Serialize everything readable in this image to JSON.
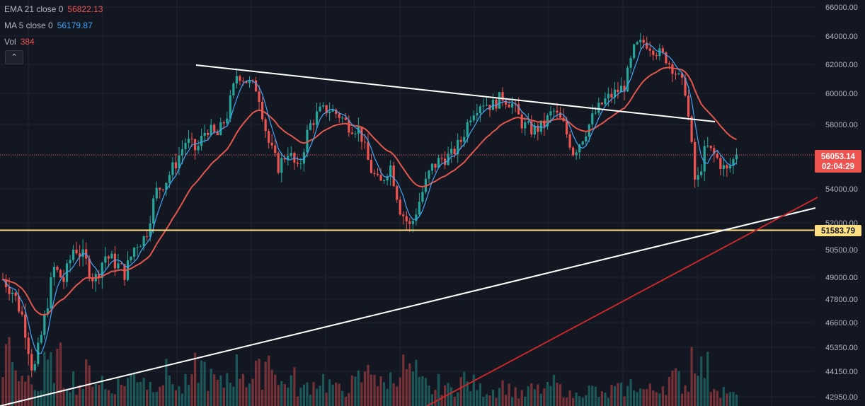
{
  "legend": {
    "ema": {
      "label": "EMA 21 close 0",
      "value": "56822.13",
      "color": "#ef5350"
    },
    "ma": {
      "label": "MA 5 close 0",
      "value": "56179.87",
      "color": "#2196f3"
    },
    "vol": {
      "label": "Vol",
      "value": "384",
      "color": "#ef5350"
    },
    "collapse_icon": "chevron-up-icon"
  },
  "price_axis": {
    "ticks": [
      "66000.00",
      "64000.00",
      "62000.00",
      "60000.00",
      "58000.00",
      "56000.00",
      "54000.00",
      "52000.00",
      "50500.00",
      "49000.00",
      "47800.00",
      "46600.00",
      "45350.00",
      "44150.00",
      "42950.00"
    ]
  },
  "badges": {
    "current_price": "56053.14",
    "countdown": "02:04:29",
    "support_level": "51583.79"
  },
  "colors": {
    "background": "#131722",
    "up": "#26a69a",
    "down": "#ef5350",
    "ema_line": "#e2574c",
    "ma_line": "#42a5f5",
    "support_line": "#ffe082",
    "trend_white": "#ffffff",
    "trend_red": "#c62828"
  },
  "chart_data": {
    "type": "candlestick",
    "y_axis_ticks": [
      66000,
      64000,
      62000,
      60000,
      58000,
      56000,
      54000,
      52000,
      50500,
      49000,
      47800,
      46600,
      45350,
      44150,
      42950
    ],
    "close_path": [
      [
        0,
        48900
      ],
      [
        1,
        48200
      ],
      [
        2,
        46800
      ],
      [
        3,
        44000
      ],
      [
        4,
        46500
      ],
      [
        5,
        49500
      ],
      [
        6,
        48800
      ],
      [
        7,
        50700
      ],
      [
        8,
        50000
      ],
      [
        9,
        48800
      ],
      [
        10,
        50200
      ],
      [
        11,
        49800
      ],
      [
        12,
        49200
      ],
      [
        13,
        50800
      ],
      [
        14,
        51200
      ],
      [
        15,
        53800
      ],
      [
        16,
        54500
      ],
      [
        17,
        55600
      ],
      [
        18,
        57000
      ],
      [
        19,
        56300
      ],
      [
        20,
        57800
      ],
      [
        21,
        57200
      ],
      [
        22,
        58600
      ],
      [
        23,
        61400
      ],
      [
        24,
        60800
      ],
      [
        25,
        60300
      ],
      [
        26,
        57000
      ],
      [
        27,
        55300
      ],
      [
        28,
        56300
      ],
      [
        29,
        55000
      ],
      [
        30,
        57800
      ],
      [
        31,
        58800
      ],
      [
        32,
        59000
      ],
      [
        33,
        58600
      ],
      [
        34,
        57900
      ],
      [
        35,
        57700
      ],
      [
        36,
        55300
      ],
      [
        37,
        54200
      ],
      [
        38,
        55500
      ],
      [
        39,
        52800
      ],
      [
        40,
        51700
      ],
      [
        41,
        53500
      ],
      [
        42,
        55200
      ],
      [
        43,
        55800
      ],
      [
        44,
        56000
      ],
      [
        45,
        57000
      ],
      [
        46,
        58800
      ],
      [
        47,
        59500
      ],
      [
        48,
        59200
      ],
      [
        49,
        59800
      ],
      [
        50,
        59300
      ],
      [
        51,
        58000
      ],
      [
        52,
        57600
      ],
      [
        53,
        57900
      ],
      [
        54,
        58900
      ],
      [
        55,
        58000
      ],
      [
        56,
        56200
      ],
      [
        57,
        57300
      ],
      [
        58,
        58600
      ],
      [
        59,
        59500
      ],
      [
        60,
        60000
      ],
      [
        61,
        60500
      ],
      [
        62,
        63200
      ],
      [
        63,
        63600
      ],
      [
        64,
        63000
      ],
      [
        65,
        62500
      ],
      [
        66,
        61500
      ],
      [
        67,
        60200
      ],
      [
        68,
        54000
      ],
      [
        69,
        56600
      ],
      [
        70,
        55900
      ],
      [
        71,
        55000
      ],
      [
        72,
        56053.14
      ]
    ],
    "volume_relative": [
      0.9,
      0.5,
      0.6,
      0.3,
      0.7,
      0.8,
      0.5,
      0.4,
      0.6,
      0.5,
      0.3,
      0.4,
      0.5,
      0.6,
      0.4,
      0.5,
      0.6,
      0.3,
      0.4,
      0.7,
      0.5,
      0.4,
      0.6,
      0.7,
      0.5,
      0.6,
      0.9,
      0.4,
      0.5,
      0.3,
      0.4,
      0.5,
      0.4,
      0.3,
      0.4,
      0.5,
      0.8,
      0.4,
      0.5,
      0.7,
      0.6,
      0.4,
      0.3,
      0.4,
      0.3,
      0.5,
      0.4,
      0.3,
      0.3,
      0.4,
      0.3,
      0.2,
      0.3,
      0.3,
      0.4,
      0.3,
      0.2,
      0.3,
      0.3,
      0.2,
      0.3,
      0.3,
      0.4,
      0.3,
      0.3,
      0.4,
      0.5,
      0.4,
      1.0,
      0.7,
      0.4,
      0.3,
      0.2
    ],
    "ema21_last": 56822.13,
    "ma5_last": 56179.87,
    "current_price": 56053.14,
    "horizontal_level": 51583.79
  }
}
